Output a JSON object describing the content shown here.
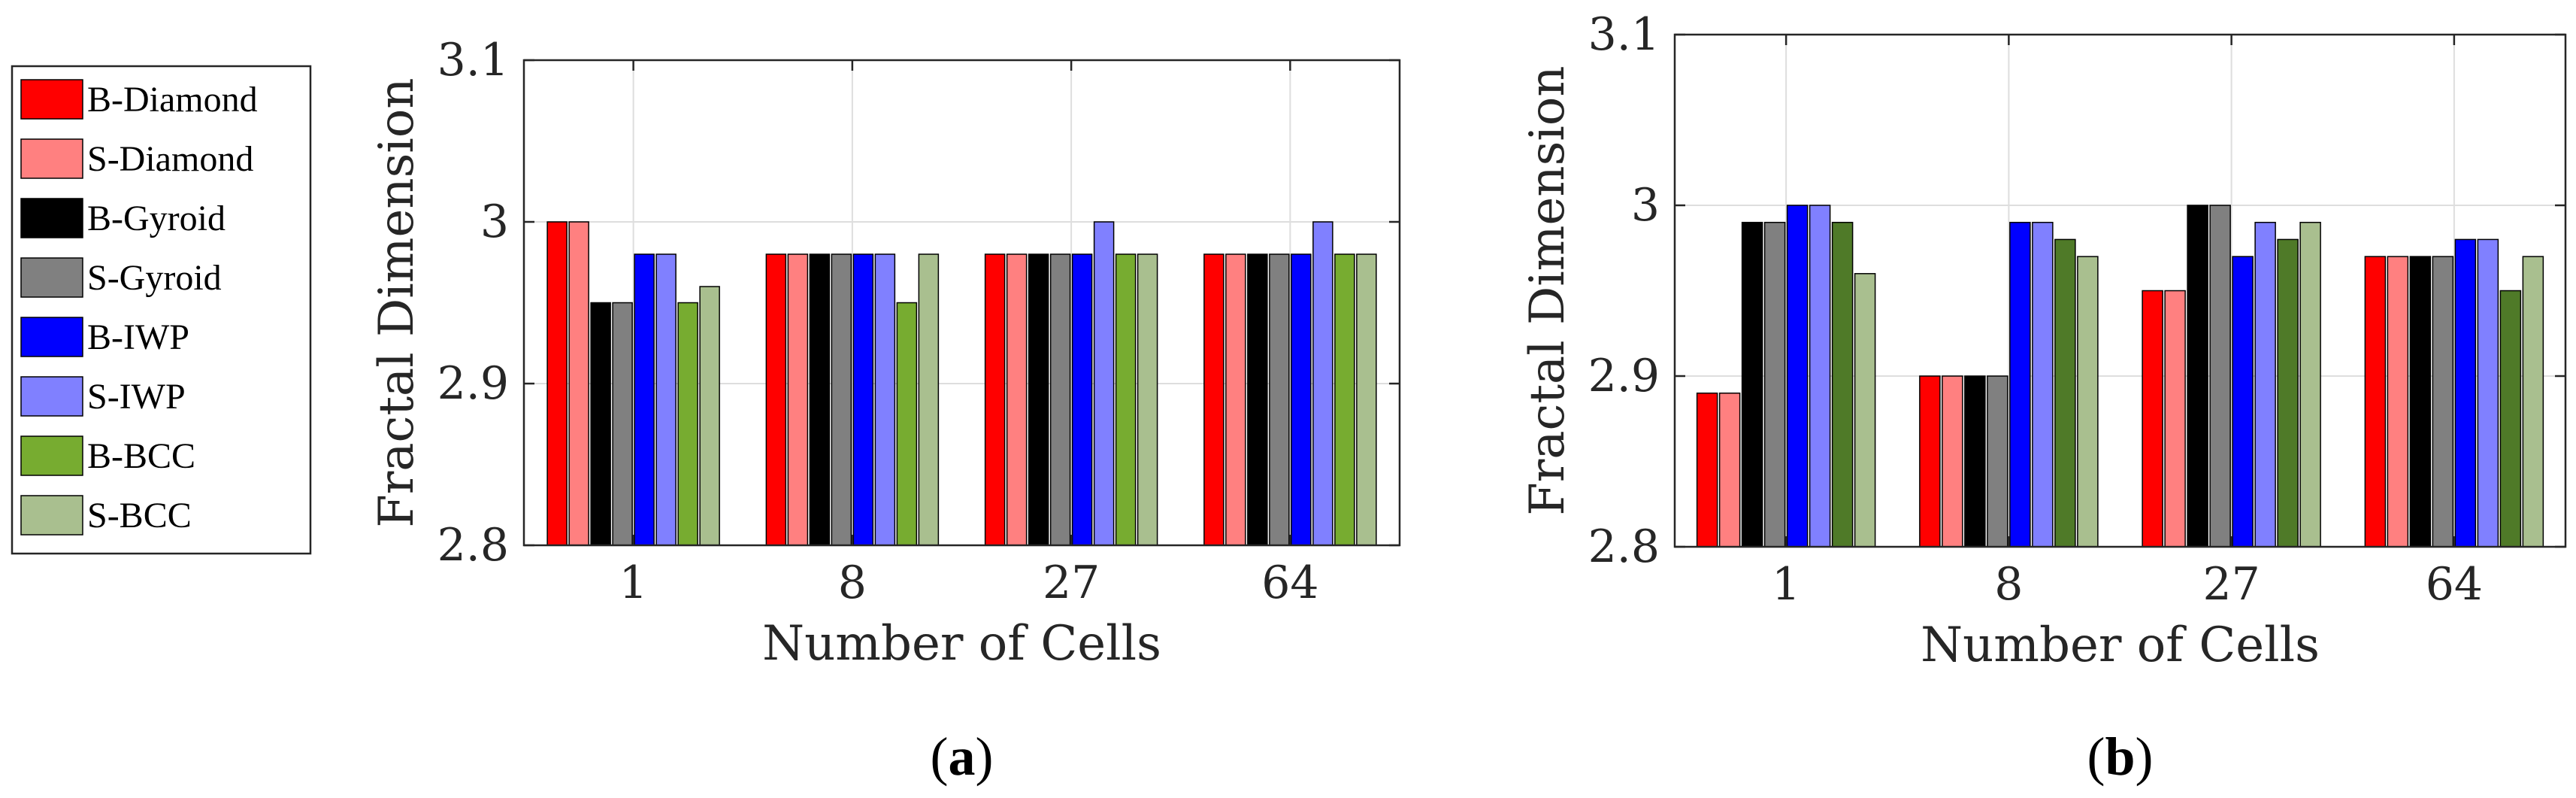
{
  "chart_data": [
    {
      "type": "bar",
      "panel": "a",
      "caption_open": "(",
      "caption_letter": "a",
      "caption_close": ")",
      "xlabel": "Number of Cells",
      "ylabel": "Fractal Dimension",
      "ylim": [
        2.8,
        3.1
      ],
      "yticks": [
        2.8,
        2.9,
        3.0,
        3.1
      ],
      "ytick_labels": [
        "2.8",
        "2.9",
        "3",
        "3.1"
      ],
      "grid": true,
      "categories": [
        "1",
        "8",
        "27",
        "64"
      ],
      "series": [
        {
          "name": "B-Diamond",
          "color": "#ff0000",
          "values": [
            3.0,
            2.98,
            2.98,
            2.98
          ]
        },
        {
          "name": "S-Diamond",
          "color": "#ff8080",
          "values": [
            3.0,
            2.98,
            2.98,
            2.98
          ]
        },
        {
          "name": "B-Gyroid",
          "color": "#000000",
          "values": [
            2.95,
            2.98,
            2.98,
            2.98
          ]
        },
        {
          "name": "S-Gyroid",
          "color": "#808080",
          "values": [
            2.95,
            2.98,
            2.98,
            2.98
          ]
        },
        {
          "name": "B-IWP",
          "color": "#0000ff",
          "values": [
            2.98,
            2.98,
            2.98,
            2.98
          ]
        },
        {
          "name": "S-IWP",
          "color": "#8080ff",
          "values": [
            2.98,
            2.98,
            3.0,
            3.0
          ]
        },
        {
          "name": "B-BCC",
          "color": "#77ac30",
          "values": [
            2.95,
            2.95,
            2.98,
            2.98
          ]
        },
        {
          "name": "S-BCC",
          "color": "#a9bf8f",
          "values": [
            2.96,
            2.98,
            2.98,
            2.98
          ]
        }
      ]
    },
    {
      "type": "bar",
      "panel": "b",
      "caption_open": "(",
      "caption_letter": "b",
      "caption_close": ")",
      "xlabel": "Number of Cells",
      "ylabel": "Fractal Dimension",
      "ylim": [
        2.8,
        3.1
      ],
      "yticks": [
        2.8,
        2.9,
        3.0,
        3.1
      ],
      "ytick_labels": [
        "2.8",
        "2.9",
        "3",
        "3.1"
      ],
      "grid": true,
      "categories": [
        "1",
        "8",
        "27",
        "64"
      ],
      "series": [
        {
          "name": "B-Diamond",
          "color": "#ff0000",
          "values": [
            2.89,
            2.9,
            2.95,
            2.97
          ]
        },
        {
          "name": "S-Diamond",
          "color": "#ff8080",
          "values": [
            2.89,
            2.9,
            2.95,
            2.97
          ]
        },
        {
          "name": "B-Gyroid",
          "color": "#000000",
          "values": [
            2.99,
            2.9,
            3.0,
            2.97
          ]
        },
        {
          "name": "S-Gyroid",
          "color": "#808080",
          "values": [
            2.99,
            2.9,
            3.0,
            2.97
          ]
        },
        {
          "name": "B-IWP",
          "color": "#0000ff",
          "values": [
            3.0,
            2.99,
            2.97,
            2.98
          ]
        },
        {
          "name": "S-IWP",
          "color": "#8080ff",
          "values": [
            3.0,
            2.99,
            2.99,
            2.98
          ]
        },
        {
          "name": "B-BCC",
          "color": "#4f7a28",
          "values": [
            2.99,
            2.98,
            2.98,
            2.95
          ]
        },
        {
          "name": "S-BCC",
          "color": "#a9bf8f",
          "values": [
            2.96,
            2.97,
            2.99,
            2.97
          ]
        }
      ]
    }
  ],
  "legend": {
    "placement": "left",
    "entries": [
      {
        "name": "B-Diamond",
        "color": "#ff0000"
      },
      {
        "name": "S-Diamond",
        "color": "#ff8080"
      },
      {
        "name": "B-Gyroid",
        "color": "#000000"
      },
      {
        "name": "S-Gyroid",
        "color": "#808080"
      },
      {
        "name": "B-IWP",
        "color": "#0000ff"
      },
      {
        "name": "S-IWP",
        "color": "#8080ff"
      },
      {
        "name": "B-BCC",
        "color": "#77ac30"
      },
      {
        "name": "S-BCC",
        "color": "#a9bf8f"
      }
    ]
  }
}
